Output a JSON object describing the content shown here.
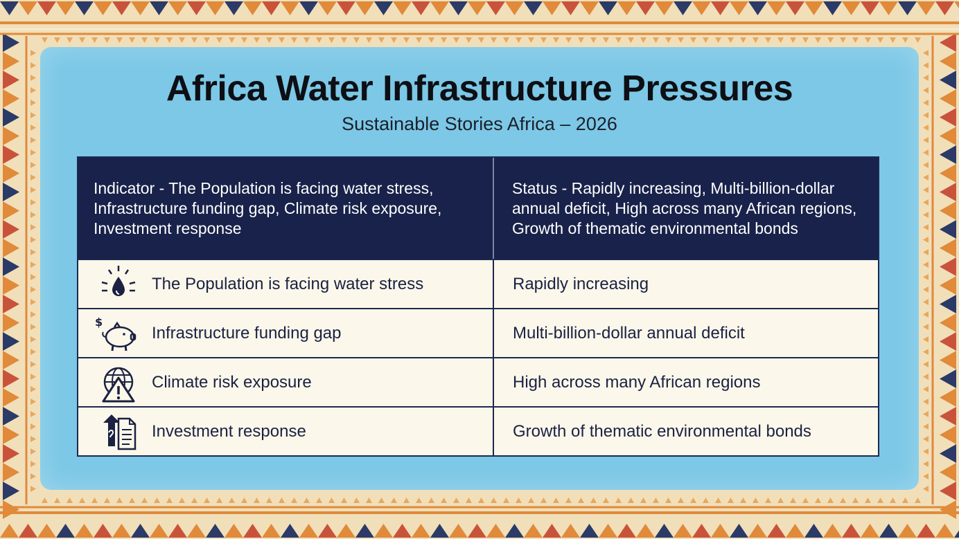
{
  "header": {
    "title": "Africa Water Infrastructure Pressures",
    "subtitle": "Sustainable Stories Africa – 2026"
  },
  "table": {
    "header_left": "Indicator - The Population is facing water stress, Infrastructure funding gap, Climate risk exposure, Investment response",
    "header_right": "Status - Rapidly increasing, Multi-billion-dollar annual deficit, High across many African regions, Growth of thematic environmental bonds",
    "rows": [
      {
        "indicator": "The Population is facing water stress",
        "status": "Rapidly increasing",
        "icon": "water-drop-icon"
      },
      {
        "indicator": "Infrastructure funding gap",
        "status": "Multi-billion-dollar annual deficit",
        "icon": "piggy-bank-icon"
      },
      {
        "indicator": "Climate risk exposure",
        "status": "High across many African regions",
        "icon": "globe-warning-icon"
      },
      {
        "indicator": "Investment response",
        "status": "Growth of thematic environmental bonds",
        "icon": "investment-document-icon"
      }
    ]
  },
  "colors": {
    "panel": "#7cc8e6",
    "table_header": "#18224a",
    "border_orange": "#e08a3a",
    "border_navy": "#2b3a66"
  }
}
